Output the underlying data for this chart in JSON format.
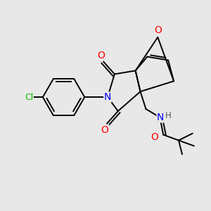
{
  "background_color": "#e8e8e8",
  "bond_color": "#000000",
  "atom_colors": {
    "O": "#ff0000",
    "N": "#0000ff",
    "Cl": "#00bb00",
    "H": "#555555",
    "C": "#000000"
  },
  "figsize": [
    3.0,
    3.0
  ],
  "dpi": 100
}
